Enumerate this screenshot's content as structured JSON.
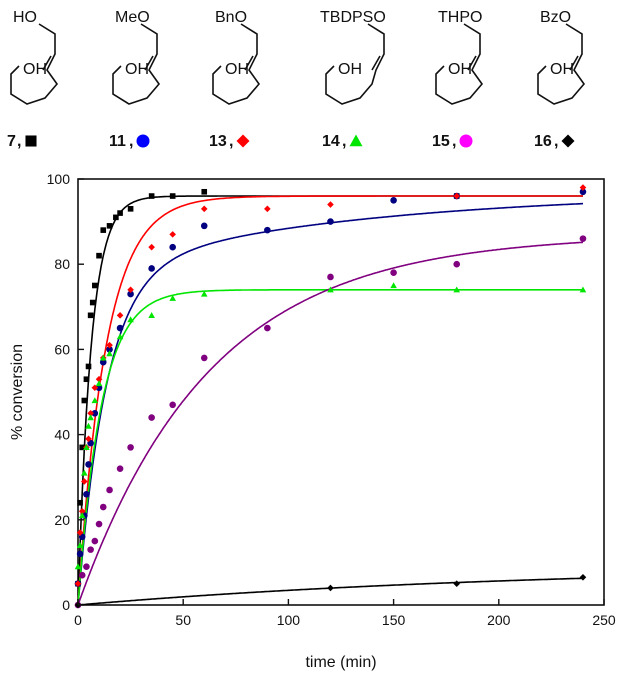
{
  "structures": [
    {
      "group": "HO",
      "id": "7",
      "sep": ",",
      "marker": "square",
      "color": "#000000"
    },
    {
      "group": "MeO",
      "id": "11",
      "sep": ",",
      "marker": "circle",
      "color": "#0000ff"
    },
    {
      "group": "BnO",
      "id": "13",
      "sep": ",",
      "marker": "diamond",
      "color": "#ff0000"
    },
    {
      "group": "TBDPSO",
      "id": "14",
      "sep": ",",
      "marker": "triangle",
      "color": "#00e600"
    },
    {
      "group": "THPO",
      "id": "15",
      "sep": ",",
      "marker": "circle",
      "color": "#ff00ff"
    },
    {
      "group": "BzO",
      "id": "16",
      "sep": ",",
      "marker": "diamond",
      "color": "#000000"
    }
  ],
  "structure_oh": "OH",
  "chart_data": {
    "type": "scatter",
    "title": "",
    "xlabel": "time (min)",
    "ylabel": "% conversion",
    "xlim": [
      0,
      250
    ],
    "ylim": [
      0,
      100
    ],
    "xticks": [
      0,
      50,
      100,
      150,
      200,
      250
    ],
    "yticks": [
      0,
      20,
      40,
      60,
      80,
      100
    ],
    "series": [
      {
        "name": "7",
        "marker": "square",
        "color": "#000000",
        "fit": {
          "A": 96,
          "k": 0.16
        },
        "x": [
          0,
          1,
          2,
          3,
          4,
          5,
          6,
          7,
          8,
          10,
          12,
          15,
          18,
          20,
          25,
          35,
          45,
          60,
          180
        ],
        "y": [
          5,
          24,
          37,
          48,
          53,
          56,
          68,
          71,
          75,
          82,
          88,
          89,
          91,
          92,
          93,
          96,
          96,
          97,
          96
        ]
      },
      {
        "name": "11",
        "marker": "circle",
        "color": "#000080",
        "fit": {
          "A": 78,
          "k": 0.075,
          "B": 19,
          "k2": 0.008
        },
        "x": [
          0,
          1,
          2,
          3,
          4,
          5,
          6,
          8,
          10,
          12,
          15,
          20,
          25,
          35,
          45,
          60,
          90,
          120,
          150,
          180,
          240
        ],
        "y": [
          5,
          12,
          16,
          21,
          26,
          33,
          38,
          45,
          51,
          57,
          60,
          65,
          73,
          79,
          84,
          89,
          88,
          90,
          95,
          96,
          97
        ]
      },
      {
        "name": "13",
        "marker": "diamond",
        "color": "#ff0000",
        "fit": {
          "A": 96,
          "k": 0.075
        },
        "x": [
          0,
          1,
          2,
          3,
          4,
          5,
          6,
          8,
          10,
          12,
          15,
          20,
          25,
          35,
          45,
          60,
          90,
          120,
          180,
          240
        ],
        "y": [
          5,
          17,
          22,
          29,
          37,
          39,
          45,
          51,
          53,
          58,
          61,
          68,
          74,
          84,
          87,
          93,
          93,
          94,
          96,
          98
        ]
      },
      {
        "name": "14",
        "marker": "triangle",
        "color": "#00e600",
        "fit": {
          "A": 74,
          "k": 0.09
        },
        "x": [
          0,
          1,
          2,
          3,
          4,
          5,
          6,
          8,
          10,
          12,
          15,
          20,
          25,
          35,
          45,
          60,
          120,
          150,
          180,
          240
        ],
        "y": [
          9,
          14,
          21,
          31,
          37,
          42,
          44,
          48,
          52,
          58,
          59,
          63,
          67,
          68,
          72,
          73,
          74,
          75,
          74,
          74
        ]
      },
      {
        "name": "15",
        "marker": "circle",
        "color": "#800080",
        "fit": {
          "A": 87,
          "k": 0.016
        },
        "x": [
          0,
          2,
          4,
          6,
          8,
          10,
          12,
          15,
          20,
          25,
          35,
          45,
          60,
          90,
          120,
          150,
          180,
          240
        ],
        "y": [
          0,
          7,
          9,
          13,
          15,
          19,
          23,
          27,
          32,
          37,
          44,
          47,
          58,
          65,
          77,
          78,
          80,
          86
        ]
      },
      {
        "name": "16",
        "marker": "diamond",
        "color": "#000000",
        "fit": {
          "A": 9.5,
          "k": 0.0045
        },
        "x": [
          0,
          120,
          180,
          240
        ],
        "y": [
          0,
          4,
          5,
          6.5
        ]
      }
    ]
  }
}
